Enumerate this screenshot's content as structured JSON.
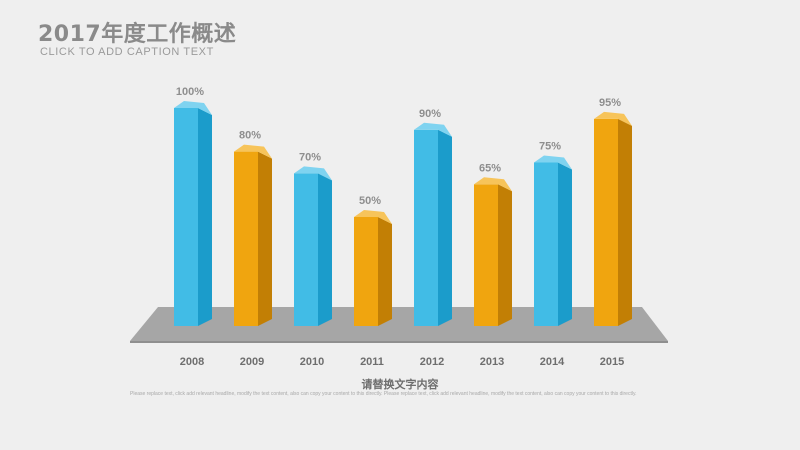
{
  "header": {
    "title": "2017年度工作概述",
    "subtitle": "CLICK TO ADD CAPTION TEXT"
  },
  "caption": "请替换文字内容",
  "footnote": "Please replace text, click add relevant headline, modify the text content, also can copy your content to this directly. Please replace text, click add relevant headline, modify the text content, also can copy your content to this directly.",
  "colors": {
    "blue": "#3fb8e3",
    "orange": "#eea20d",
    "floor": "#a6a6a6"
  },
  "chart_data": {
    "type": "bar",
    "title": "",
    "xlabel": "",
    "ylabel": "",
    "ylim": [
      0,
      100
    ],
    "categories": [
      "2008",
      "2009",
      "2010",
      "2011",
      "2012",
      "2013",
      "2014",
      "2015"
    ],
    "values": [
      100,
      80,
      70,
      50,
      90,
      65,
      75,
      95
    ],
    "labels": [
      "100%",
      "80%",
      "70%",
      "50%",
      "90%",
      "65%",
      "75%",
      "95%"
    ],
    "bar_colors": [
      "blue",
      "orange",
      "blue",
      "orange",
      "blue",
      "orange",
      "blue",
      "orange"
    ],
    "style": "3d-columns"
  }
}
